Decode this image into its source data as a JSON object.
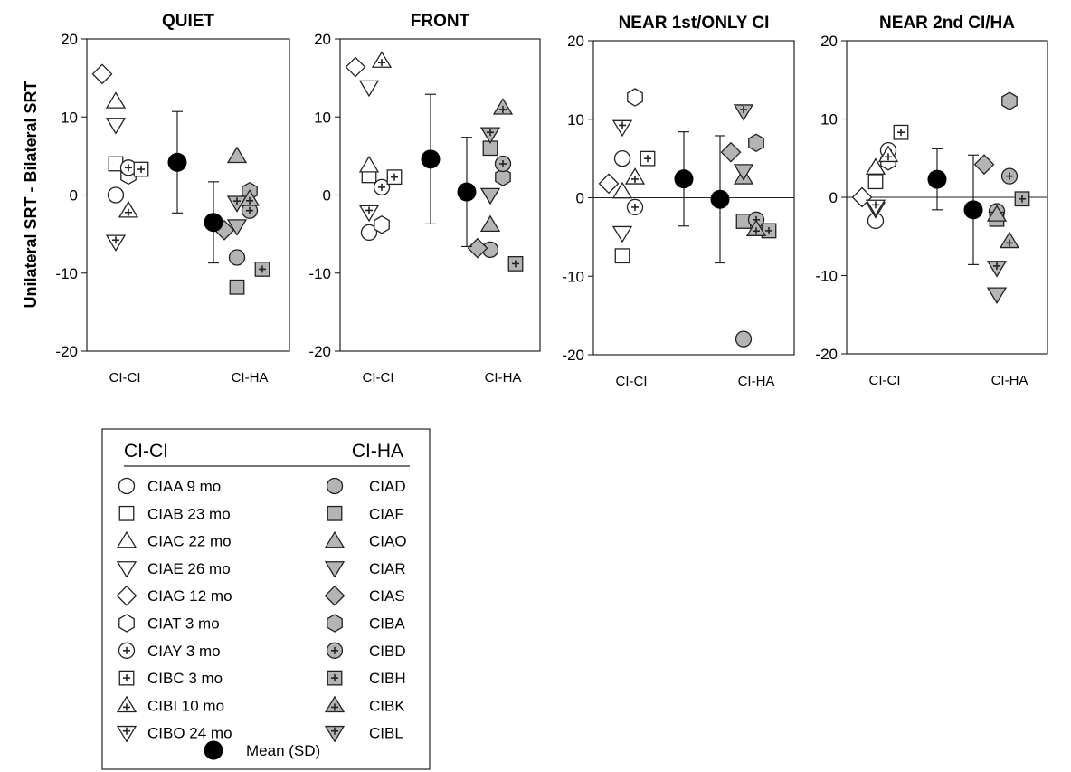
{
  "chart_data": {
    "type": "scatter",
    "ylabel": "Unilateral SRT - Bilateral SRT",
    "yticks": [
      "20",
      "10",
      "0",
      "-10",
      "-20"
    ],
    "ylim": [
      -20,
      20
    ],
    "categories": [
      "CI-CI",
      "CI-HA"
    ],
    "panels": [
      {
        "title": "QUIET",
        "ci_ci": {
          "mean": 4.2,
          "sd": 6.5
        },
        "ci_ha": {
          "mean": -3.5,
          "sd": 5.2
        },
        "points": [
          {
            "subject": "CIAA",
            "group": "CI-CI",
            "y": 0.0
          },
          {
            "subject": "CIAB",
            "group": "CI-CI",
            "y": 4.0
          },
          {
            "subject": "CIAC",
            "group": "CI-CI",
            "y": 12.0
          },
          {
            "subject": "CIAE",
            "group": "CI-CI",
            "y": 9.0
          },
          {
            "subject": "CIAG",
            "group": "CI-CI",
            "y": 15.5
          },
          {
            "subject": "CIAT",
            "group": "CI-CI",
            "y": 2.5
          },
          {
            "subject": "CIAY",
            "group": "CI-CI",
            "y": 3.5
          },
          {
            "subject": "CIBC",
            "group": "CI-CI",
            "y": 3.3
          },
          {
            "subject": "CIBI",
            "group": "CI-CI",
            "y": -2.0
          },
          {
            "subject": "CIBO",
            "group": "CI-CI",
            "y": -6.0
          },
          {
            "subject": "CIAD",
            "group": "CI-HA",
            "y": -8.0
          },
          {
            "subject": "CIAF",
            "group": "CI-HA",
            "y": -11.8
          },
          {
            "subject": "CIAO",
            "group": "CI-HA",
            "y": 5.0
          },
          {
            "subject": "CIAR",
            "group": "CI-HA",
            "y": -4.0
          },
          {
            "subject": "CIAS",
            "group": "CI-HA",
            "y": -4.5
          },
          {
            "subject": "CIBA",
            "group": "CI-HA",
            "y": 0.5
          },
          {
            "subject": "CIBD",
            "group": "CI-HA",
            "y": -2.0
          },
          {
            "subject": "CIBH",
            "group": "CI-HA",
            "y": -9.5
          },
          {
            "subject": "CIBK",
            "group": "CI-HA",
            "y": -0.5
          },
          {
            "subject": "CIBL",
            "group": "CI-HA",
            "y": -1.0
          }
        ]
      },
      {
        "title": "FRONT",
        "ci_ci": {
          "mean": 4.6,
          "sd": 8.3
        },
        "ci_ha": {
          "mean": 0.4,
          "sd": 7.0
        },
        "points": [
          {
            "subject": "CIAA",
            "group": "CI-CI",
            "y": -4.8
          },
          {
            "subject": "CIAB",
            "group": "CI-CI",
            "y": 2.5
          },
          {
            "subject": "CIAC",
            "group": "CI-CI",
            "y": 3.8
          },
          {
            "subject": "CIAE",
            "group": "CI-CI",
            "y": 13.8
          },
          {
            "subject": "CIAG",
            "group": "CI-CI",
            "y": 16.4
          },
          {
            "subject": "CIAT",
            "group": "CI-CI",
            "y": -3.8
          },
          {
            "subject": "CIAY",
            "group": "CI-CI",
            "y": 1.0
          },
          {
            "subject": "CIBC",
            "group": "CI-CI",
            "y": 2.3
          },
          {
            "subject": "CIBI",
            "group": "CI-CI",
            "y": 17.2
          },
          {
            "subject": "CIBO",
            "group": "CI-CI",
            "y": -2.2
          },
          {
            "subject": "CIAD",
            "group": "CI-HA",
            "y": -7.0
          },
          {
            "subject": "CIAF",
            "group": "CI-HA",
            "y": 6.0
          },
          {
            "subject": "CIAO",
            "group": "CI-HA",
            "y": -3.8
          },
          {
            "subject": "CIAR",
            "group": "CI-HA",
            "y": 0.0
          },
          {
            "subject": "CIAS",
            "group": "CI-HA",
            "y": -6.8
          },
          {
            "subject": "CIBA",
            "group": "CI-HA",
            "y": 2.3
          },
          {
            "subject": "CIBD",
            "group": "CI-HA",
            "y": 4.0
          },
          {
            "subject": "CIBH",
            "group": "CI-HA",
            "y": -8.8
          },
          {
            "subject": "CIBK",
            "group": "CI-HA",
            "y": 11.2
          },
          {
            "subject": "CIBL",
            "group": "CI-HA",
            "y": 7.8
          }
        ]
      },
      {
        "title": "NEAR 1st/ONLY CI",
        "ci_ci": {
          "mean": 2.4,
          "sd": 6.0
        },
        "ci_ha": {
          "mean": -0.2,
          "sd": 8.1
        },
        "points": [
          {
            "subject": "CIAA",
            "group": "CI-CI",
            "y": 5.0
          },
          {
            "subject": "CIAB",
            "group": "CI-CI",
            "y": -7.4
          },
          {
            "subject": "CIAC",
            "group": "CI-CI",
            "y": 0.8
          },
          {
            "subject": "CIAE",
            "group": "CI-CI",
            "y": -4.5
          },
          {
            "subject": "CIAG",
            "group": "CI-CI",
            "y": 1.8
          },
          {
            "subject": "CIAT",
            "group": "CI-CI",
            "y": 12.8
          },
          {
            "subject": "CIAY",
            "group": "CI-CI",
            "y": -1.2
          },
          {
            "subject": "CIBC",
            "group": "CI-CI",
            "y": 5.0
          },
          {
            "subject": "CIBI",
            "group": "CI-CI",
            "y": 2.6
          },
          {
            "subject": "CIBO",
            "group": "CI-CI",
            "y": 9.0
          },
          {
            "subject": "CIAD",
            "group": "CI-HA",
            "y": -18.0
          },
          {
            "subject": "CIAF",
            "group": "CI-HA",
            "y": -3.0
          },
          {
            "subject": "CIAO",
            "group": "CI-HA",
            "y": 2.6
          },
          {
            "subject": "CIAR",
            "group": "CI-HA",
            "y": 3.4
          },
          {
            "subject": "CIAS",
            "group": "CI-HA",
            "y": 5.8
          },
          {
            "subject": "CIBA",
            "group": "CI-HA",
            "y": 7.0
          },
          {
            "subject": "CIBD",
            "group": "CI-HA",
            "y": -2.8
          },
          {
            "subject": "CIBH",
            "group": "CI-HA",
            "y": -4.2
          },
          {
            "subject": "CIBK",
            "group": "CI-HA",
            "y": -4.0
          },
          {
            "subject": "CIBL",
            "group": "CI-HA",
            "y": 11.0
          }
        ]
      },
      {
        "title": "NEAR 2nd CI/HA",
        "ci_ci": {
          "mean": 2.3,
          "sd": 3.9
        },
        "ci_ha": {
          "mean": -1.6,
          "sd": 7.0
        },
        "points": [
          {
            "subject": "CIAA",
            "group": "CI-CI",
            "y": -3.0
          },
          {
            "subject": "CIAB",
            "group": "CI-CI",
            "y": 2.0
          },
          {
            "subject": "CIAC",
            "group": "CI-CI",
            "y": 3.8
          },
          {
            "subject": "CIAE",
            "group": "CI-CI",
            "y": -1.5
          },
          {
            "subject": "CIAG",
            "group": "CI-CI",
            "y": 0.0
          },
          {
            "subject": "CIAT",
            "group": "CI-CI",
            "y": 4.6
          },
          {
            "subject": "CIAY",
            "group": "CI-CI",
            "y": 6.0
          },
          {
            "subject": "CIBC",
            "group": "CI-CI",
            "y": 8.3
          },
          {
            "subject": "CIBI",
            "group": "CI-CI",
            "y": 5.4
          },
          {
            "subject": "CIBO",
            "group": "CI-CI",
            "y": -1.2
          },
          {
            "subject": "CIAD",
            "group": "CI-HA",
            "y": -1.8
          },
          {
            "subject": "CIAF",
            "group": "CI-HA",
            "y": -2.8
          },
          {
            "subject": "CIAO",
            "group": "CI-HA",
            "y": -2.2
          },
          {
            "subject": "CIAR",
            "group": "CI-HA",
            "y": -12.4
          },
          {
            "subject": "CIAS",
            "group": "CI-HA",
            "y": 4.2
          },
          {
            "subject": "CIBA",
            "group": "CI-HA",
            "y": 12.3
          },
          {
            "subject": "CIBD",
            "group": "CI-HA",
            "y": 2.7
          },
          {
            "subject": "CIBH",
            "group": "CI-HA",
            "y": -0.2
          },
          {
            "subject": "CIBK",
            "group": "CI-HA",
            "y": -5.6
          },
          {
            "subject": "CIBL",
            "group": "CI-HA",
            "y": -9.0
          }
        ]
      }
    ]
  },
  "legend": {
    "col_left": "CI-CI",
    "col_right": "CI-HA",
    "ci_ci": [
      {
        "id": "CIAA",
        "label": "CIAA  9 mo",
        "marker": "circle"
      },
      {
        "id": "CIAB",
        "label": "CIAB  23 mo",
        "marker": "square"
      },
      {
        "id": "CIAC",
        "label": "CIAC  22 mo",
        "marker": "triangle-up"
      },
      {
        "id": "CIAE",
        "label": "CIAE  26 mo",
        "marker": "triangle-down"
      },
      {
        "id": "CIAG",
        "label": "CIAG  12 mo",
        "marker": "diamond"
      },
      {
        "id": "CIAT",
        "label": "CIAT  3 mo",
        "marker": "hexagon"
      },
      {
        "id": "CIAY",
        "label": "CIAY  3 mo",
        "marker": "circle-plus"
      },
      {
        "id": "CIBC",
        "label": "CIBC  3 mo",
        "marker": "square-plus"
      },
      {
        "id": "CIBI",
        "label": "CIBI  10 mo",
        "marker": "triangle-up-plus"
      },
      {
        "id": "CIBO",
        "label": "CIBO 24 mo",
        "marker": "triangle-down-plus"
      }
    ],
    "ci_ha": [
      {
        "id": "CIAD",
        "label": "CIAD",
        "marker": "circle"
      },
      {
        "id": "CIAF",
        "label": "CIAF",
        "marker": "square"
      },
      {
        "id": "CIAO",
        "label": "CIAO",
        "marker": "triangle-up"
      },
      {
        "id": "CIAR",
        "label": "CIAR",
        "marker": "triangle-down"
      },
      {
        "id": "CIAS",
        "label": "CIAS",
        "marker": "diamond"
      },
      {
        "id": "CIBA",
        "label": "CIBA",
        "marker": "hexagon"
      },
      {
        "id": "CIBD",
        "label": "CIBD",
        "marker": "circle-plus"
      },
      {
        "id": "CIBH",
        "label": "CIBH",
        "marker": "square-plus"
      },
      {
        "id": "CIBK",
        "label": "CIBK",
        "marker": "triangle-up-plus"
      },
      {
        "id": "CIBL",
        "label": "CIBL",
        "marker": "triangle-down-plus"
      }
    ],
    "mean_label": "Mean (SD)"
  },
  "colors": {
    "ci_ci_fill": "#ffffff",
    "ci_ha_fill": "#b4b4b4",
    "stroke": "#222222",
    "mean": "#000000"
  }
}
